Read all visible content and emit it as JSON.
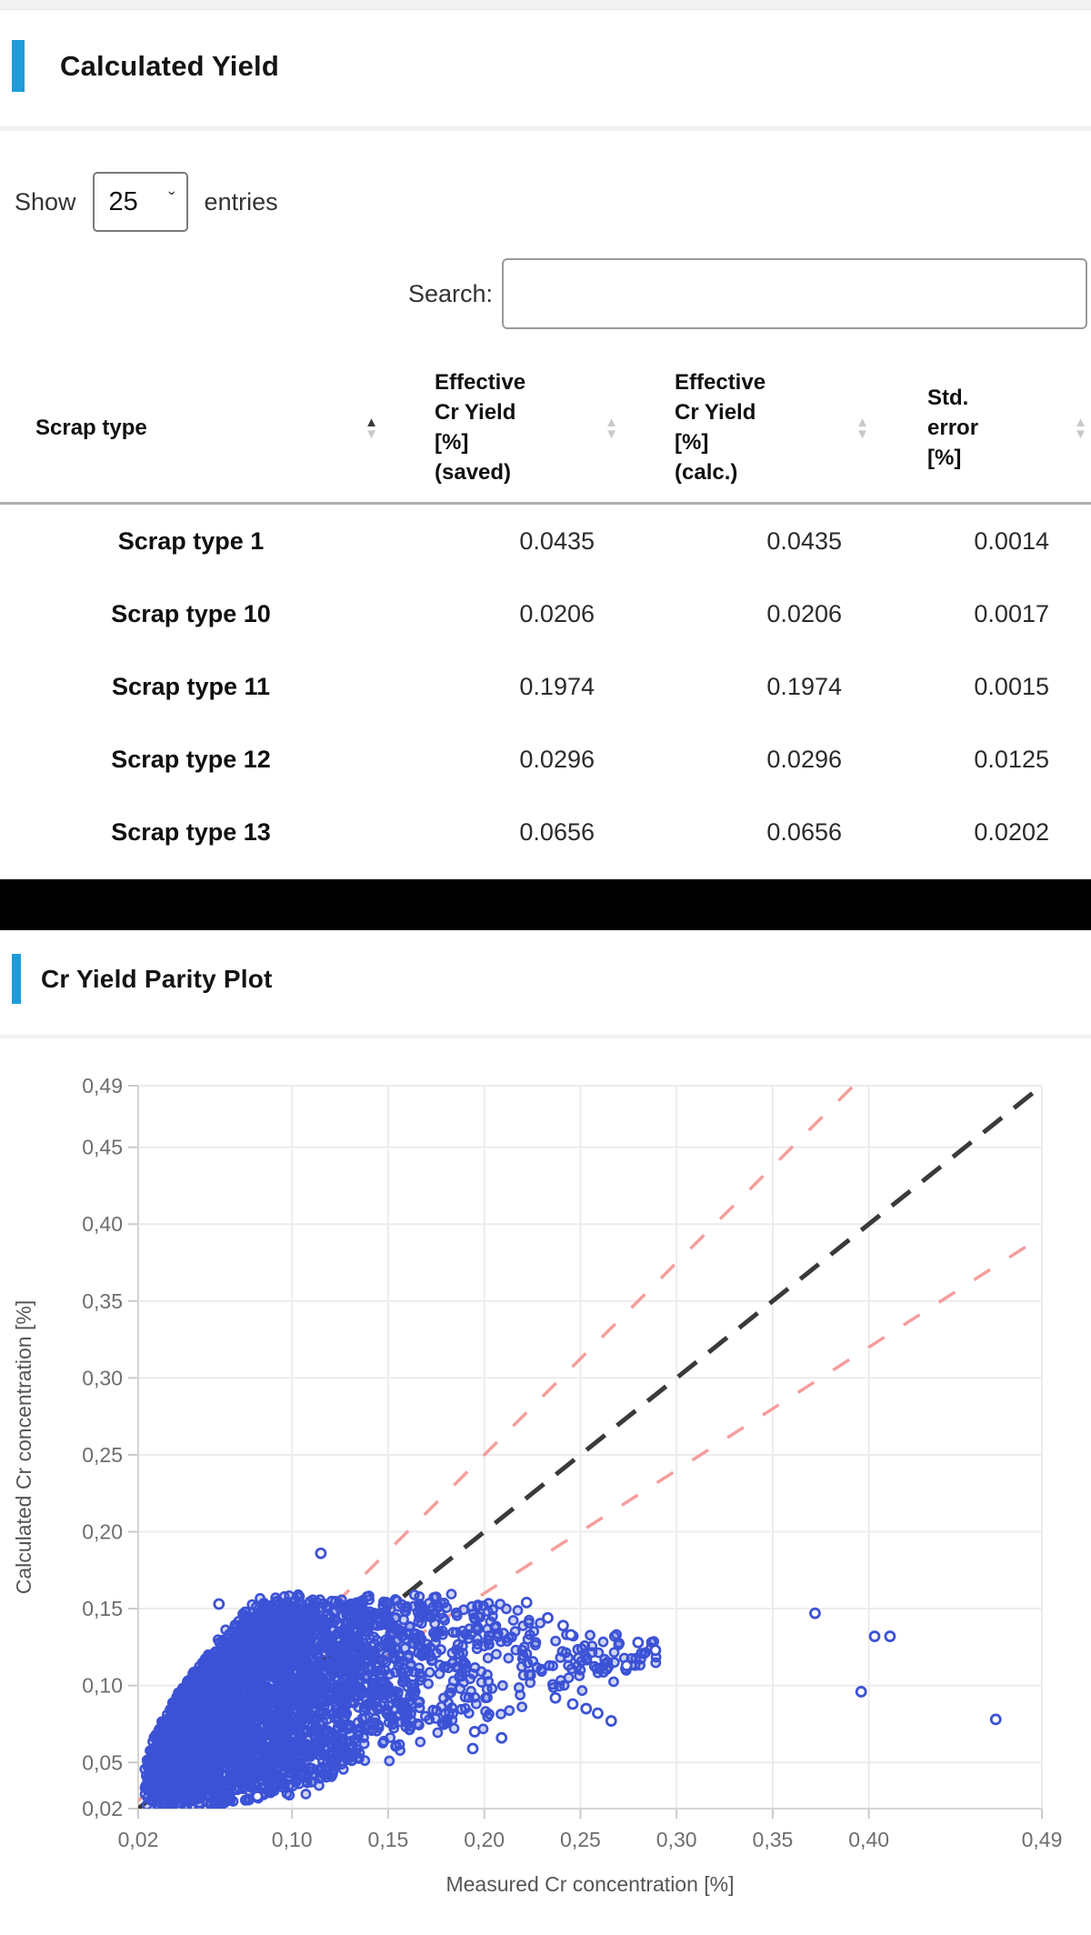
{
  "yield_section": {
    "title": "Calculated Yield",
    "show_label": "Show",
    "page_length": "25",
    "entries_label": "entries",
    "search_label": "Search:",
    "search_value": "",
    "table": {
      "columns": [
        {
          "label": "Scrap type",
          "lines": [
            "Scrap type"
          ],
          "sort": "asc"
        },
        {
          "label": "Effective Cr Yield [%] (saved)",
          "lines": [
            "Effective",
            "Cr Yield",
            "[%]",
            "(saved)"
          ],
          "sort": "none"
        },
        {
          "label": "Effective Cr Yield [%] (calc.)",
          "lines": [
            "Effective",
            "Cr Yield",
            "[%]",
            "(calc.)"
          ],
          "sort": "none"
        },
        {
          "label": "Std. error [%]",
          "lines": [
            "Std.",
            "error",
            "[%]"
          ],
          "sort": "none"
        }
      ],
      "rows": [
        {
          "scrap_type": "Scrap type 1",
          "saved": "0.0435",
          "calc": "0.0435",
          "std_error": "0.0014"
        },
        {
          "scrap_type": "Scrap type 10",
          "saved": "0.0206",
          "calc": "0.0206",
          "std_error": "0.0017"
        },
        {
          "scrap_type": "Scrap type 11",
          "saved": "0.1974",
          "calc": "0.1974",
          "std_error": "0.0015"
        },
        {
          "scrap_type": "Scrap type 12",
          "saved": "0.0296",
          "calc": "0.0296",
          "std_error": "0.0125"
        },
        {
          "scrap_type": "Scrap type 13",
          "saved": "0.0656",
          "calc": "0.0656",
          "std_error": "0.0202"
        }
      ]
    }
  },
  "parity_section": {
    "title": "Cr Yield Parity Plot"
  },
  "chart_data": {
    "type": "scatter",
    "title": "Cr Yield Parity Plot",
    "xlabel": "Measured Cr concentration [%]",
    "ylabel": "Calculated Cr concentration [%]",
    "xlim": [
      0.02,
      0.49
    ],
    "ylim": [
      0.02,
      0.49
    ],
    "grid": true,
    "decimal_separator": ",",
    "x_ticks": {
      "values": [
        0.02,
        0.1,
        0.15,
        0.2,
        0.25,
        0.3,
        0.35,
        0.4,
        0.49
      ],
      "labels": [
        "0,02",
        "0,10",
        "0,15",
        "0,20",
        "0,25",
        "0,30",
        "0,35",
        "0,40",
        "0,49"
      ]
    },
    "y_ticks": {
      "values": [
        0.02,
        0.05,
        0.1,
        0.15,
        0.2,
        0.25,
        0.3,
        0.35,
        0.4,
        0.45,
        0.49
      ],
      "labels": [
        "0,02",
        "0,05",
        "0,10",
        "0,15",
        "0,20",
        "0,25",
        "0,30",
        "0,35",
        "0,40",
        "0,45",
        "0,49"
      ]
    },
    "marker": {
      "shape": "open-circle",
      "color": "#3c52d6",
      "radius": 4.6,
      "stroke_width": 2.6
    },
    "lines": [
      {
        "name": "parity y=x",
        "slope": 1.0,
        "color": "#3a3a3a",
        "dash": [
          26,
          17
        ],
        "width": 5
      },
      {
        "name": "+25% band y=1.25x",
        "slope": 1.25,
        "color": "#f69d9d",
        "dash": [
          21,
          25
        ],
        "width": 3.5
      },
      {
        "name": "-20% band y=0.8x",
        "slope": 0.8,
        "color": "#f69d9d",
        "dash": [
          21,
          25
        ],
        "width": 3.5
      }
    ],
    "cluster": {
      "description": "dense fan of ~4000 points from (0.02,0.02), top envelope rising to a ridge at y≈0.155 by x≈0.085, ridge declining slightly after x≈0.19, bottom envelope near y≈0.024 rising after x≈0.085, core extent x 0.02-0.22 with frayed tail to x≈0.30",
      "n": 4000,
      "seed": 42,
      "x_sigma": 0.068,
      "x_base": 0.022,
      "x_max": 0.295,
      "tail_fraction": 0.025,
      "tail_x0": 0.19,
      "tail_span": 0.1,
      "y_cap": 0.155,
      "top_rise": 0.135,
      "top_scale": 0.065,
      "top_pow": 0.55,
      "ridge_decline_x": 0.19,
      "ridge_decline_slope": 0.3,
      "bot_base": 0.023,
      "bot_rise_x": 0.085,
      "bot_slope": 0.45,
      "top_skew": 0.8,
      "jitter": 0.012
    },
    "outlier_points": [
      [
        0.115,
        0.186
      ],
      [
        0.062,
        0.153
      ],
      [
        0.082,
        0.028
      ],
      [
        0.372,
        0.147
      ],
      [
        0.403,
        0.132
      ],
      [
        0.411,
        0.132
      ],
      [
        0.396,
        0.096
      ],
      [
        0.466,
        0.078
      ],
      [
        0.28,
        0.128
      ],
      [
        0.289,
        0.123
      ],
      [
        0.274,
        0.113
      ],
      [
        0.237,
        0.092
      ],
      [
        0.246,
        0.088
      ],
      [
        0.253,
        0.085
      ],
      [
        0.259,
        0.082
      ],
      [
        0.266,
        0.077
      ],
      [
        0.222,
        0.154
      ],
      [
        0.233,
        0.144
      ],
      [
        0.241,
        0.139
      ],
      [
        0.245,
        0.133
      ],
      [
        0.195,
        0.07
      ],
      [
        0.209,
        0.066
      ],
      [
        0.194,
        0.059
      ]
    ],
    "colors": {
      "accent": "#1e9cd8",
      "grid": "#ececec",
      "axis": "#d5d5d5",
      "tick": "#c9c9c9",
      "point": "#3c52d6",
      "parity": "#3a3a3a",
      "band": "#f69d9d"
    }
  }
}
